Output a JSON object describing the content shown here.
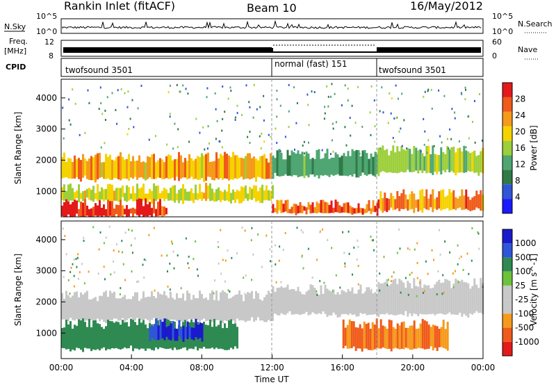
{
  "header": {
    "station": "Rankin Inlet (fitACF)",
    "beam": "Beam 10",
    "date": "16/May/2012"
  },
  "top_panels": {
    "nsky_label": "N.Sky",
    "nsearch_label": "N.Search",
    "nsky_ticks": [
      "10^5",
      "10^0"
    ],
    "nsearch_ticks": [
      "10^5",
      "10^0"
    ],
    "freq_label_1": "Freq.",
    "freq_label_2": "[MHz]",
    "freq_ticks": [
      "12",
      "8"
    ],
    "nave_label": "Nave",
    "nave_ticks": [
      "60",
      "0"
    ],
    "cpid_label": "CPID",
    "cpid_segments": [
      {
        "name": "twofsound 3501",
        "start_hour": 0,
        "end_hour": 12
      },
      {
        "name": "normal (fast) 151",
        "start_hour": 12,
        "end_hour": 18
      },
      {
        "name": "twofsound 3501",
        "start_hour": 18,
        "end_hour": 24
      }
    ]
  },
  "chart_data": [
    {
      "type": "heatmap",
      "title": "",
      "ylabel": "Slant Range [km]",
      "ylim": [
        180,
        4600
      ],
      "yticks": [
        "4000",
        "3000",
        "2000",
        "1000"
      ],
      "colorbar_label": "Power [dB]",
      "colorbar_ticks": [
        "28",
        "24",
        "20",
        "16",
        "12",
        "8",
        "4"
      ],
      "colors": [
        "#1a1aff",
        "#2f56d8",
        "#2f7a46",
        "#4fa672",
        "#9ccf3a",
        "#f5d300",
        "#f59a1a",
        "#f05a1a",
        "#e41a1a"
      ],
      "bands": [
        {
          "x_start": 0,
          "x_end": 12,
          "range_low": 1400,
          "range_high": 2100,
          "value": 22
        },
        {
          "x_start": 0,
          "x_end": 12,
          "range_low": 700,
          "range_high": 1100,
          "value": 18
        },
        {
          "x_start": 0,
          "x_end": 6,
          "range_low": 200,
          "range_high": 600,
          "value": 30
        },
        {
          "x_start": 12,
          "x_end": 18,
          "range_low": 1500,
          "range_high": 2200,
          "value": 12
        },
        {
          "x_start": 12,
          "x_end": 18,
          "range_low": 300,
          "range_high": 600,
          "value": 26
        },
        {
          "x_start": 18,
          "x_end": 24,
          "range_low": 1600,
          "range_high": 2300,
          "value": 16
        },
        {
          "x_start": 18,
          "x_end": 24,
          "range_low": 400,
          "range_high": 900,
          "value": 24
        }
      ]
    },
    {
      "type": "heatmap",
      "title": "",
      "xlabel": "Time UT",
      "ylabel": "Slant Range [km]",
      "ylim": [
        180,
        4600
      ],
      "yticks": [
        "4000",
        "3000",
        "2000",
        "1000"
      ],
      "xticks": [
        "00:00",
        "04:00",
        "08:00",
        "12:00",
        "16:00",
        "20:00",
        "00:00"
      ],
      "colorbar_label": "Velocity [m s^-1]",
      "colorbar_ticks": [
        "1000",
        "500",
        "100",
        "25",
        "-25",
        "-100",
        "-500",
        "-1000"
      ],
      "colors": [
        "#e41a1a",
        "#f05a1a",
        "#f59a1a",
        "#c8c8c8",
        "#c8c8c8",
        "#6cc33a",
        "#2f8a52",
        "#2f56d8",
        "#1a1acc"
      ],
      "bands": [
        {
          "x_start": 0,
          "x_end": 12,
          "range_low": 1400,
          "range_high": 2200,
          "value": 0
        },
        {
          "x_start": 0,
          "x_end": 10,
          "range_low": 500,
          "range_high": 1300,
          "value": 300
        },
        {
          "x_start": 5,
          "x_end": 8,
          "range_low": 800,
          "range_high": 1300,
          "value": 1000
        },
        {
          "x_start": 12,
          "x_end": 18,
          "range_low": 1600,
          "range_high": 2400,
          "value": 0
        },
        {
          "x_start": 16,
          "x_end": 22,
          "range_low": 500,
          "range_high": 1300,
          "value": -500
        },
        {
          "x_start": 18,
          "x_end": 24,
          "range_low": 1600,
          "range_high": 2600,
          "value": 0
        }
      ]
    }
  ]
}
